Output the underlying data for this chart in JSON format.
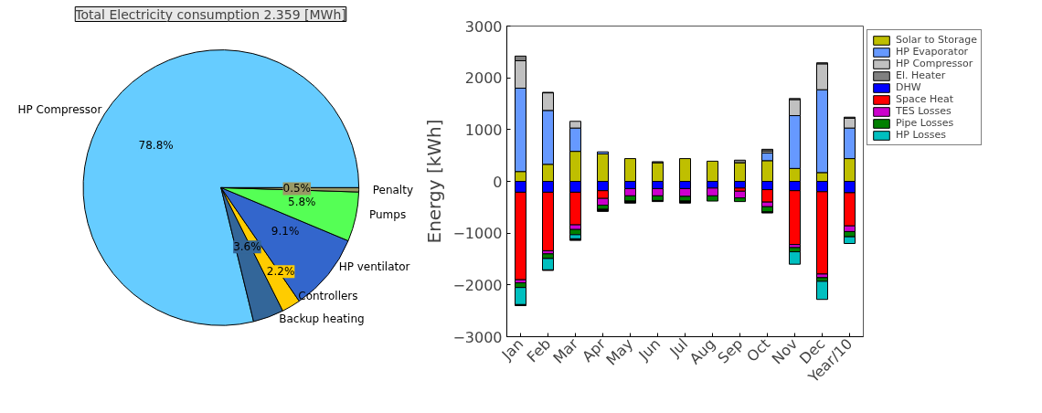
{
  "chart_data": [
    {
      "type": "pie",
      "title": "Total Electricity consumption 2.359 [MWh]",
      "categories": [
        "HP Compressor",
        "Backup heating",
        "Controllers",
        "HP ventilator",
        "Pumps",
        "Penalty"
      ],
      "values": [
        78.8,
        3.6,
        2.2,
        9.1,
        5.8,
        0.5
      ],
      "colors": [
        "#66ccff",
        "#336699",
        "#ffcc00",
        "#3366cc",
        "#55ff55",
        "#999966"
      ],
      "value_labels": [
        "78.8%",
        "3.6%",
        "2.2%",
        "9.1%",
        "5.8%",
        "0.5%"
      ]
    },
    {
      "type": "bar",
      "stacked": true,
      "categories": [
        "Jan",
        "Feb",
        "Mar",
        "Apr",
        "May",
        "Jun",
        "Jul",
        "Aug",
        "Sep",
        "Oct",
        "Nov",
        "Dec",
        "Year/10"
      ],
      "ylabel": "Energy [kWh]",
      "ylim": [
        -3000,
        3000
      ],
      "yticks": [
        -3000,
        -2000,
        -1000,
        0,
        1000,
        2000,
        3000
      ],
      "legend": "right",
      "series": [
        {
          "name": "Solar to Storage",
          "color": "#bfbf00",
          "values": [
            190,
            330,
            580,
            530,
            440,
            360,
            440,
            390,
            360,
            400,
            250,
            170,
            440
          ]
        },
        {
          "name": "HP Evaporator",
          "color": "#6699ff",
          "values": [
            1610,
            1040,
            450,
            40,
            0,
            0,
            0,
            0,
            0,
            150,
            1020,
            1600,
            590
          ]
        },
        {
          "name": "HP Compressor",
          "color": "#c0c0c0",
          "values": [
            530,
            340,
            130,
            0,
            0,
            0,
            0,
            0,
            0,
            40,
            310,
            500,
            190
          ]
        },
        {
          "name": "El. Heater",
          "color": "#808080",
          "values": [
            90,
            10,
            0,
            null,
            0,
            20,
            0,
            0,
            50,
            30,
            20,
            20,
            20
          ]
        },
        {
          "name": "DHW",
          "color": "#0000ff",
          "values": [
            -210,
            -210,
            -210,
            -180,
            -140,
            -140,
            -140,
            -130,
            -130,
            -160,
            -180,
            -200,
            -220
          ]
        },
        {
          "name": "Space Heat",
          "color": "#ff0000",
          "values": [
            -1690,
            -1130,
            -630,
            -150,
            0,
            0,
            0,
            0,
            -60,
            -240,
            -1040,
            -1590,
            -640
          ]
        },
        {
          "name": "TES Losses",
          "color": "#cc00cc",
          "values": [
            -60,
            -60,
            -90,
            -130,
            -140,
            -140,
            -150,
            -150,
            -130,
            -90,
            -60,
            -70,
            -110
          ]
        },
        {
          "name": "Pipe Losses",
          "color": "#008000",
          "values": [
            -90,
            -90,
            -100,
            -80,
            -100,
            -90,
            -90,
            -100,
            -70,
            -100,
            -80,
            -70,
            -100
          ]
        },
        {
          "name": "HP Losses",
          "color": "#00bfbf",
          "values": [
            -330,
            -220,
            -80,
            0,
            0,
            0,
            0,
            0,
            0,
            0,
            -240,
            -350,
            -130
          ]
        },
        {
          "color": "#000000",
          "values": [
            -20,
            -10,
            -30,
            -40,
            -40,
            -20,
            -40,
            0,
            0,
            -20,
            0,
            0,
            0
          ]
        }
      ]
    }
  ]
}
